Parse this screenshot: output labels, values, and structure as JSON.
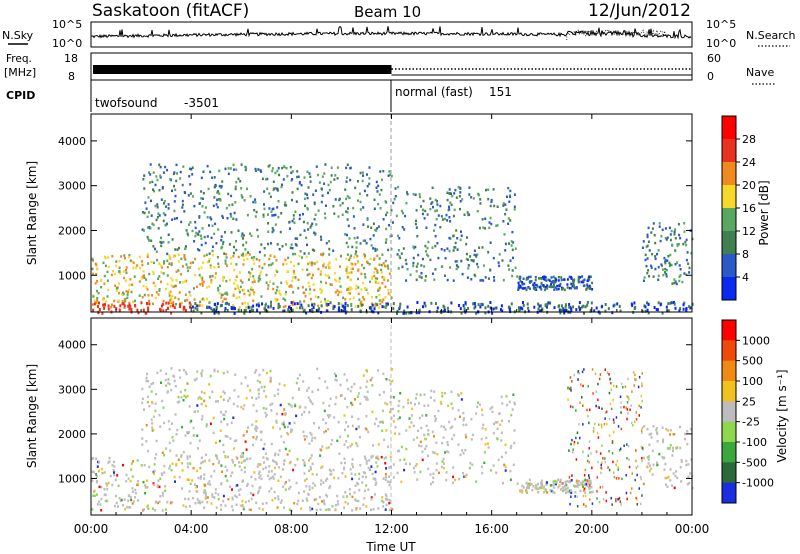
{
  "header": {
    "station": "Saskatoon (fitACF)",
    "beam": "Beam 10",
    "date": "12/Jun/2012"
  },
  "summary": {
    "left_noise_label": "N.Sky",
    "right_noise_label": "N.Search",
    "left_noise_ticks": [
      "10^5",
      "10^0"
    ],
    "right_noise_ticks": [
      "10^5",
      "10^0"
    ],
    "freq_label_1": "Freq.",
    "freq_label_2": "[MHz]",
    "freq_ticks": [
      "18",
      "8"
    ],
    "nave_label": "Nave",
    "nave_ticks": [
      "60",
      "0"
    ],
    "cpid_label": "CPID",
    "cpid_segments": [
      {
        "name": "twofsound",
        "id": "-3501",
        "start_hour": 0,
        "end_hour": 12
      },
      {
        "name": "normal (fast)",
        "id": "151",
        "start_hour": 12,
        "end_hour": 24
      }
    ]
  },
  "x_axis": {
    "label": "Time UT",
    "ticks": [
      "00:00",
      "04:00",
      "08:00",
      "12:00",
      "16:00",
      "20:00",
      "00:00"
    ],
    "range_hours": [
      0,
      24
    ]
  },
  "chart_data": [
    {
      "type": "heatmap",
      "quantity": "Power",
      "ylabel": "Slant Range [km]",
      "ylim": [
        180,
        4600
      ],
      "yticks": [
        1000,
        2000,
        3000,
        4000
      ],
      "xlim_hours": [
        0,
        24
      ],
      "colorbar": {
        "label": "Power [dB]",
        "ticks": [
          "28",
          "24",
          "20",
          "16",
          "12",
          "8",
          "4"
        ],
        "colors": [
          "#0a28f0",
          "#2a5ac8",
          "#3f8050",
          "#5aa860",
          "#f5d82a",
          "#f08a1e",
          "#e8321e",
          "#ff0000"
        ]
      },
      "bands": [
        {
          "hours": [
            0,
            12
          ],
          "range_km": [
            300,
            1500
          ],
          "level": 4
        },
        {
          "hours": [
            2,
            12
          ],
          "range_km": [
            1500,
            3500
          ],
          "level": 2
        },
        {
          "hours": [
            12,
            17
          ],
          "range_km": [
            900,
            3000
          ],
          "level": 2
        },
        {
          "hours": [
            17,
            20
          ],
          "range_km": [
            700,
            1000
          ],
          "level": 1
        },
        {
          "hours": [
            22,
            24
          ],
          "range_km": [
            800,
            2200
          ],
          "level": 2
        }
      ]
    },
    {
      "type": "heatmap",
      "quantity": "Velocity",
      "ylabel": "Slant Range [km]",
      "ylim": [
        180,
        4600
      ],
      "yticks": [
        1000,
        2000,
        3000,
        4000
      ],
      "xlim_hours": [
        0,
        24
      ],
      "colorbar": {
        "label": "Velocity [m s⁻¹]",
        "ticks": [
          "1000",
          "500",
          "100",
          "25",
          "-25",
          "-100",
          "-500",
          "-1000"
        ],
        "colors": [
          "#1a2ee0",
          "#2a6a3a",
          "#3aa83a",
          "#8ed850",
          "#bdbdbd",
          "#f2c21e",
          "#f08a14",
          "#f04a0a",
          "#ff0000"
        ]
      }
    }
  ]
}
